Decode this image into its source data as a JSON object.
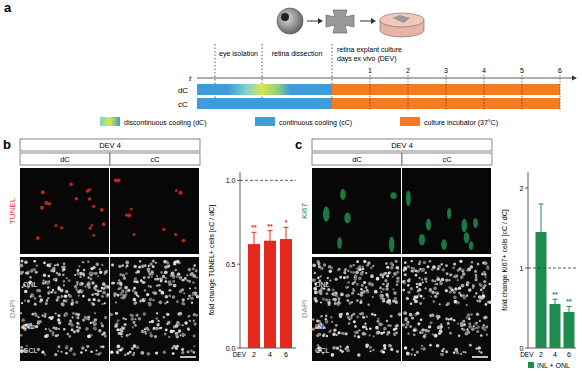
{
  "panels": {
    "a": {
      "label": "a",
      "steps": [
        "eye isolation",
        "retina dissection",
        "retina explant culture",
        "days ex vivo (DEV)"
      ],
      "time_axis": "t",
      "days": [
        1,
        2,
        3,
        4,
        5,
        6
      ],
      "rows": [
        "dC",
        "cC"
      ],
      "legend": [
        {
          "name": "discontinuous cooling (dC)"
        },
        {
          "name": "continuous cooling (cC)",
          "color": "#3d9ddc"
        },
        {
          "name": "culture incubator (37°C)",
          "color": "#f47b20"
        }
      ]
    },
    "b": {
      "label": "b",
      "header": "DEV 4",
      "columns": [
        "dC",
        "cC"
      ],
      "stain": "TUNEL",
      "counterstain": "DAPI",
      "layers": [
        "ONL",
        "INL",
        "GCL"
      ]
    },
    "c": {
      "label": "c",
      "header": "DEV 4",
      "columns": [
        "dC",
        "cC"
      ],
      "stain": "Ki67",
      "counterstain": "DAPI",
      "layers": [
        "ONL",
        "INL",
        "GCL"
      ]
    }
  },
  "chart_data": [
    {
      "type": "bar",
      "ylabel": "fold change TUNEL+ cells [cC / dC]",
      "xlabel": "DEV",
      "categories": [
        "2",
        "4",
        "6"
      ],
      "values": [
        0.62,
        0.64,
        0.65
      ],
      "errors": [
        0.07,
        0.06,
        0.07
      ],
      "significance": [
        "**",
        "**",
        "*"
      ],
      "reference_line": 1,
      "color": "#e5281e",
      "ylim": [
        0,
        1.05
      ],
      "yticks": [
        {
          "value": 0,
          "label": "0.0"
        },
        {
          "value": 0.5,
          "label": "0.5"
        },
        {
          "value": 1,
          "label": "1.0"
        }
      ]
    },
    {
      "type": "bar",
      "ylabel": "fold change Ki67+ cells [cC / dC]",
      "xlabel": "DEV",
      "categories": [
        "2",
        "4",
        "6"
      ],
      "series": [
        {
          "name": "INL + ONL",
          "color": "#1e8c4e",
          "values": [
            1.45,
            0.55,
            0.45
          ],
          "errors": [
            0.35,
            0.06,
            0.07
          ]
        }
      ],
      "significance": [
        null,
        "**",
        "**"
      ],
      "reference_line": 1,
      "legend": "bottom",
      "ylim": [
        0,
        2.2
      ],
      "yticks": [
        0,
        1,
        2
      ]
    }
  ]
}
